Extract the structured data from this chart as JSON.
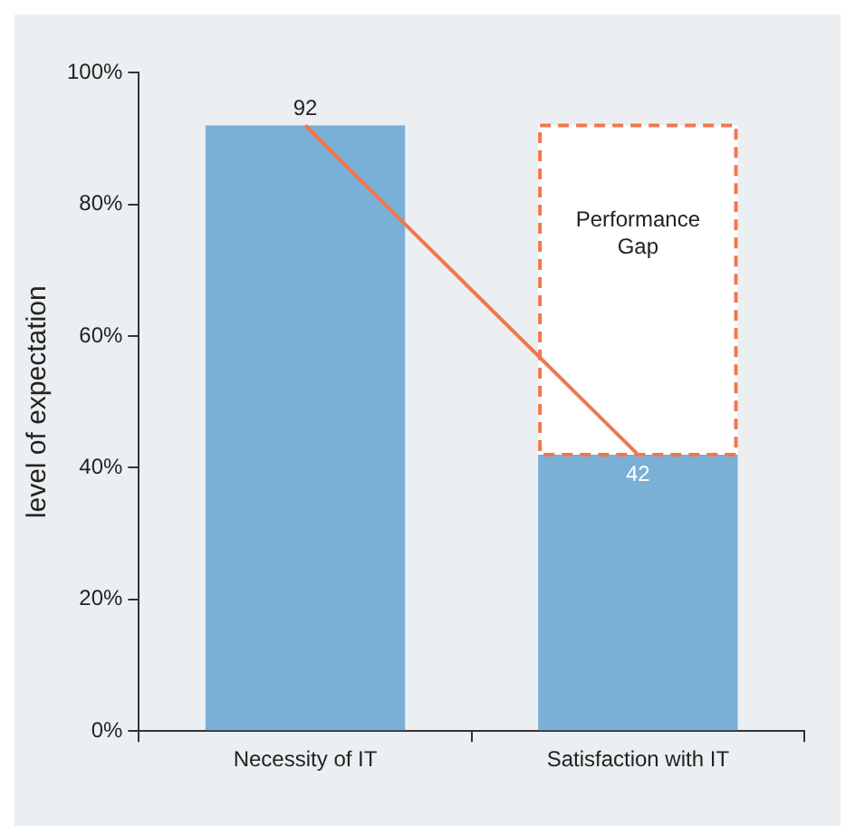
{
  "chart_data": {
    "type": "bar",
    "ylabel": "level of expectation",
    "categories": [
      "Necessity of IT",
      "Satisfaction with IT"
    ],
    "stacked": true,
    "series": [
      {
        "color": "#7ab0d6",
        "values": [
          92,
          42
        ],
        "value_labels": [
          "92",
          "42"
        ]
      },
      {
        "name": "Performance Gap",
        "color": "#f0774e",
        "line_style": "dashed",
        "values": [
          null,
          50
        ]
      },
      {
        "type": "line",
        "color": "#f0774e",
        "values": [
          92,
          42
        ]
      }
    ],
    "ylim": [
      0,
      100
    ],
    "yticks": [
      {
        "value": 0,
        "label": "0%"
      },
      {
        "value": 20,
        "label": "20%"
      },
      {
        "value": 40,
        "label": "40%"
      },
      {
        "value": 60,
        "label": "60%"
      },
      {
        "value": 80,
        "label": "80%"
      },
      {
        "value": 100,
        "label": "100%"
      }
    ],
    "grid": false,
    "legend": false
  }
}
